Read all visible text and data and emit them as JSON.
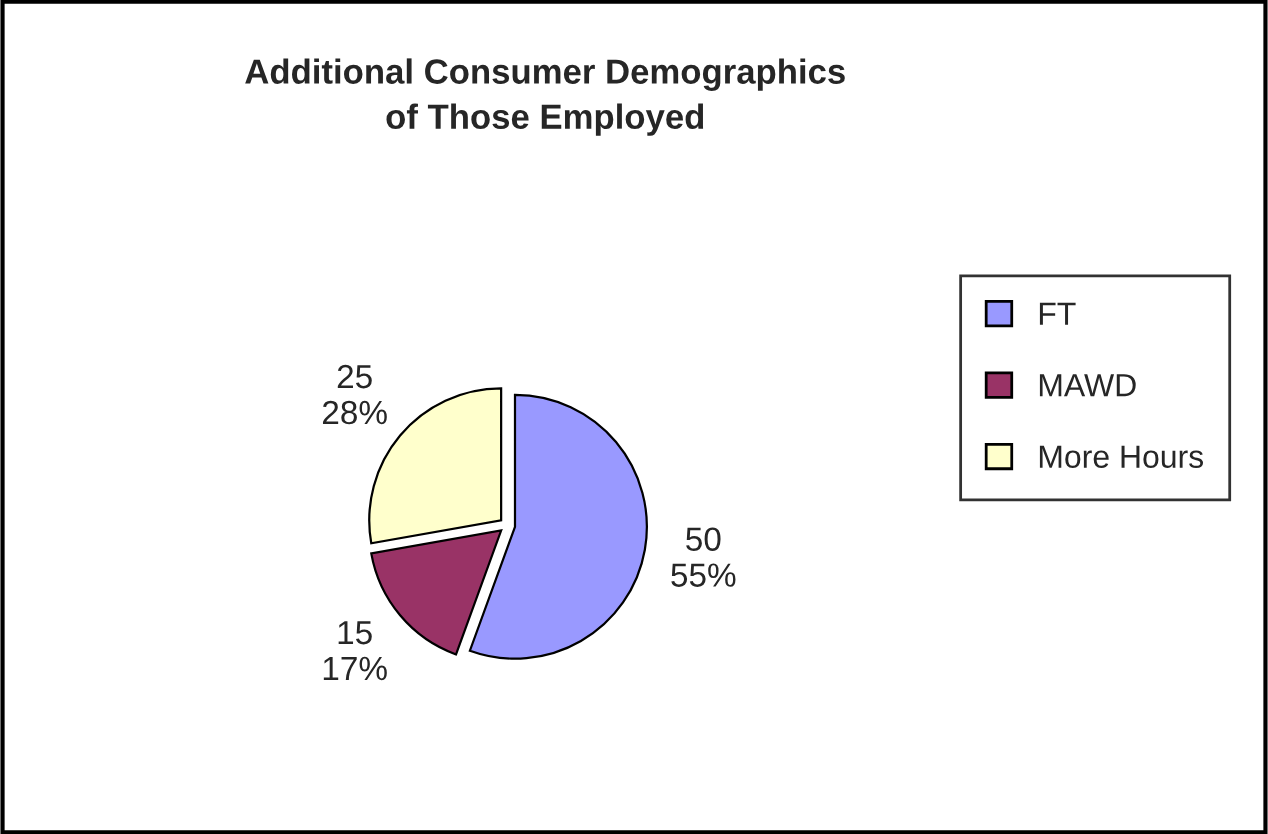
{
  "chart_data": {
    "type": "pie",
    "title": "Additional Consumer Demographics\nof Those Employed",
    "categories": [
      "FT",
      "MAWD",
      "More Hours"
    ],
    "values": [
      50,
      15,
      25
    ],
    "colors": [
      "#9999ff",
      "#993366",
      "#ffffcc"
    ],
    "value_labels": [
      "50\n55%",
      "15\n17%",
      "25\n28%"
    ],
    "legend": "right"
  }
}
